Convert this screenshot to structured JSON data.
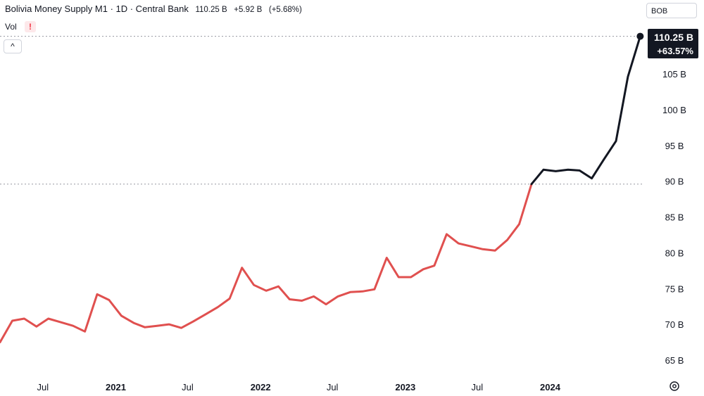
{
  "header": {
    "title": "Bolivia Money Supply M1 · 1D · Central Bank",
    "last_value": "110.25 B",
    "change": "+5.92 B",
    "change_pct": "(+5.68%)",
    "vol_label": "Vol",
    "warning_glyph": "!",
    "collapse_glyph": "^"
  },
  "currency_selector": {
    "label": "BOB"
  },
  "price_tag": {
    "value": "110.25 B",
    "change": "+63.57%"
  },
  "icons": {
    "warning": "warning-icon",
    "collapse": "chevron-up-icon",
    "settings": "settings-gear-icon"
  },
  "colors": {
    "down_series": "#e0504f",
    "up_series": "#131722",
    "tag_bg": "#131722"
  },
  "chart_data": {
    "type": "line",
    "title": "Bolivia Money Supply M1 · 1D · Central Bank",
    "xlabel": "",
    "ylabel": "",
    "ylim": [
      63,
      111
    ],
    "y_ticks": [
      "65 B",
      "70 B",
      "75 B",
      "80 B",
      "85 B",
      "90 B",
      "95 B",
      "100 B",
      "105 B"
    ],
    "x_ticks": [
      {
        "label": "Jul",
        "date": "2020-07-01",
        "year": false
      },
      {
        "label": "2021",
        "date": "2021-01-01",
        "year": true
      },
      {
        "label": "Jul",
        "date": "2021-07-01",
        "year": false
      },
      {
        "label": "2022",
        "date": "2022-01-01",
        "year": true
      },
      {
        "label": "Jul",
        "date": "2022-07-01",
        "year": false
      },
      {
        "label": "2023",
        "date": "2023-01-01",
        "year": true
      },
      {
        "label": "Jul",
        "date": "2023-07-01",
        "year": false
      },
      {
        "label": "2024",
        "date": "2024-01-01",
        "year": true
      }
    ],
    "reference_lines": [
      110.25,
      89.6
    ],
    "series": [
      {
        "color": "#e0504f",
        "x": [
          "2020-03-15",
          "2020-04-15",
          "2020-05-15",
          "2020-06-15",
          "2020-07-15",
          "2020-08-15",
          "2020-09-15",
          "2020-10-15",
          "2020-11-15",
          "2020-12-15",
          "2021-01-15",
          "2021-02-15",
          "2021-03-15",
          "2021-04-15",
          "2021-05-15",
          "2021-06-15",
          "2021-07-15",
          "2021-08-15",
          "2021-09-15",
          "2021-10-15",
          "2021-11-15",
          "2021-12-15",
          "2022-01-15",
          "2022-02-15",
          "2022-03-15",
          "2022-04-15",
          "2022-05-15",
          "2022-06-15",
          "2022-07-15",
          "2022-08-15",
          "2022-09-15",
          "2022-10-15",
          "2022-11-15",
          "2022-12-15",
          "2023-01-15",
          "2023-02-15",
          "2023-03-15",
          "2023-04-15",
          "2023-05-15",
          "2023-06-15",
          "2023-07-15",
          "2023-08-15",
          "2023-09-15",
          "2023-10-15",
          "2023-11-15"
        ],
        "values": [
          67.5,
          70.5,
          70.8,
          69.7,
          70.8,
          70.3,
          69.8,
          69.0,
          74.2,
          73.4,
          71.2,
          70.2,
          69.6,
          69.8,
          70.0,
          69.5,
          70.4,
          71.4,
          72.4,
          73.6,
          77.9,
          75.5,
          74.7,
          75.3,
          73.5,
          73.3,
          73.9,
          72.8,
          73.9,
          74.5,
          74.6,
          74.9,
          79.3,
          76.6,
          76.6,
          77.7,
          78.2,
          82.6,
          81.3,
          80.9,
          80.5,
          80.3,
          81.8,
          84.0,
          89.6
        ]
      },
      {
        "color": "#131722",
        "x": [
          "2023-11-15",
          "2023-12-15",
          "2024-01-15",
          "2024-02-15",
          "2024-03-15",
          "2024-04-15",
          "2024-05-15",
          "2024-06-15",
          "2024-07-15",
          "2024-08-15"
        ],
        "values": [
          89.6,
          91.6,
          91.4,
          91.6,
          91.5,
          90.4,
          93.0,
          95.6,
          104.6,
          110.25
        ]
      }
    ]
  }
}
